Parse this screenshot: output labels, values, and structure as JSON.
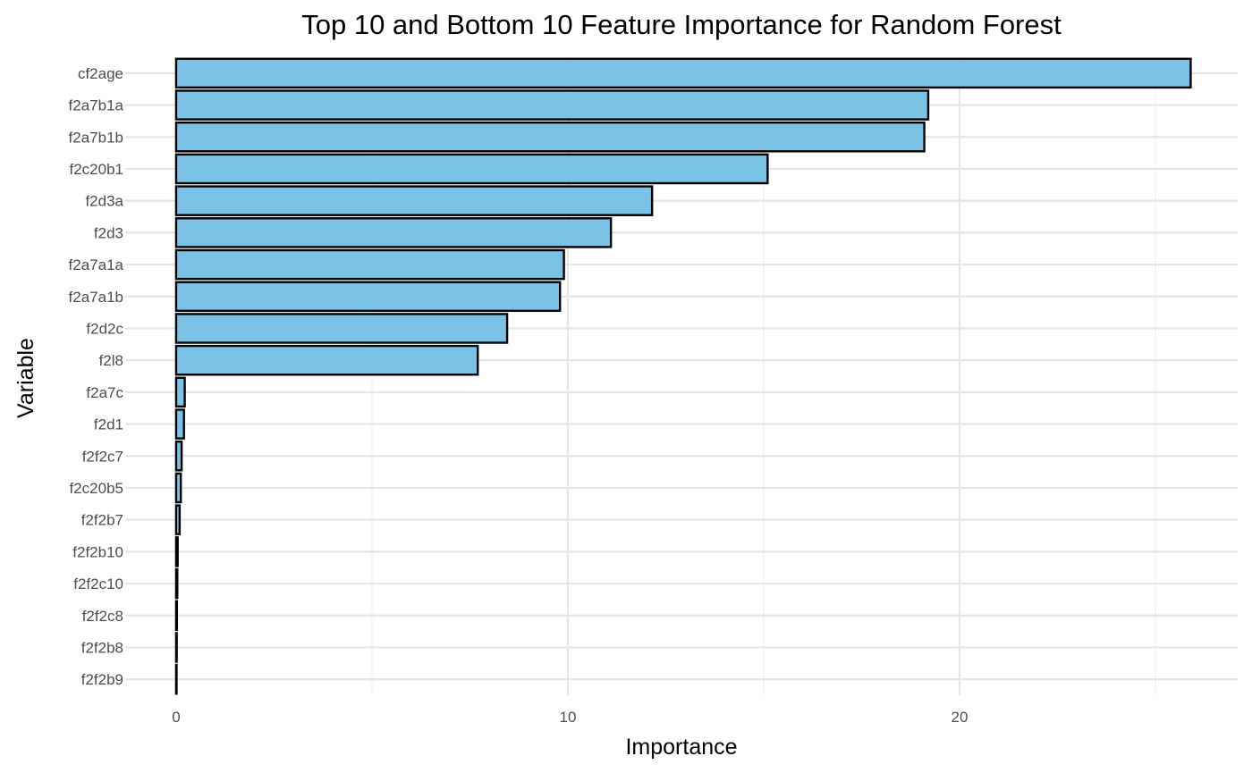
{
  "chart_data": {
    "type": "bar",
    "orientation": "horizontal",
    "title": "Top 10 and Bottom 10 Feature Importance for Random Forest",
    "xlabel": "Importance",
    "ylabel": "Variable",
    "categories": [
      "cf2age",
      "f2a7b1a",
      "f2a7b1b",
      "f2c20b1",
      "f2d3a",
      "f2d3",
      "f2a7a1a",
      "f2a7a1b",
      "f2d2c",
      "f2l8",
      "f2a7c",
      "f2d1",
      "f2f2c7",
      "f2c20b5",
      "f2f2b7",
      "f2f2b10",
      "f2f2c10",
      "f2f2c8",
      "f2f2b8",
      "f2f2b9"
    ],
    "values": [
      25.9,
      19.2,
      19.1,
      15.1,
      12.15,
      11.1,
      9.9,
      9.8,
      8.45,
      7.7,
      0.22,
      0.2,
      0.14,
      0.12,
      0.09,
      0.04,
      0.03,
      0.02,
      0.015,
      0.01
    ],
    "xlim": [
      -1.3,
      27.1
    ],
    "xticks": [
      "0",
      "10",
      "20"
    ],
    "xtick_values": [
      0,
      10,
      20
    ],
    "minor_xtick_values": [
      5,
      15,
      25
    ],
    "bar_color": "#7ac3e6",
    "bar_border_color": "#000000",
    "grid": true,
    "legend": "none"
  }
}
